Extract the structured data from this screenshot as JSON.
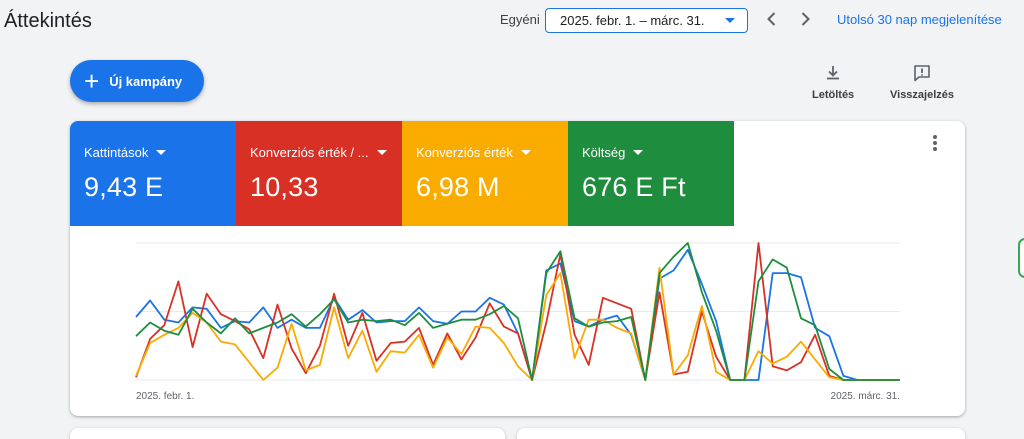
{
  "header": {
    "title": "Áttekintés",
    "date_mode": "Egyéni",
    "date_range": "2025. febr. 1. – márc. 31.",
    "last30_link": "Utolsó 30 nap megjelenítése"
  },
  "toolbar": {
    "new_campaign": "Új kampány",
    "download": "Letöltés",
    "feedback": "Visszajelzés"
  },
  "metrics": [
    {
      "label": "Kattintások",
      "value": "9,43 E",
      "color": "#1a73e8"
    },
    {
      "label": "Konverziós érték / ...",
      "value": "10,33",
      "color": "#d93025"
    },
    {
      "label": "Konverziós érték",
      "value": "6,98 M",
      "color": "#f9ab00"
    },
    {
      "label": "Költség",
      "value": "676 E Ft",
      "color": "#1e8e3e"
    }
  ],
  "chart_data": {
    "type": "line",
    "x_start": "2025. febr. 1.",
    "x_end": "2025. márc. 31.",
    "x_tick_labels": [
      "2025. febr. 1.",
      "2025. márc. 31."
    ],
    "grid": true,
    "note_units": "relative values (no y-axis labels shown)",
    "ylim": [
      0,
      1
    ],
    "series": [
      {
        "color": "#1a73e8",
        "values": [
          0.46,
          0.58,
          0.44,
          0.42,
          0.53,
          0.52,
          0.38,
          0.43,
          0.42,
          0.53,
          0.38,
          0.44,
          0.38,
          0.38,
          0.6,
          0.44,
          0.51,
          0.42,
          0.43,
          0.43,
          0.53,
          0.43,
          0.41,
          0.5,
          0.5,
          0.6,
          0.55,
          0.34,
          0.0,
          0.8,
          0.85,
          0.43,
          0.39,
          0.44,
          0.47,
          0.33,
          0.0,
          0.74,
          0.8,
          0.95,
          0.7,
          0.43,
          0.0,
          0.0,
          0.0,
          0.78,
          0.78,
          0.75,
          0.38,
          0.32,
          0.03,
          0.0,
          0.0,
          0.0,
          0.0
        ]
      },
      {
        "color": "#d93025",
        "values": [
          0.02,
          0.3,
          0.4,
          0.72,
          0.24,
          0.63,
          0.48,
          0.43,
          0.37,
          0.16,
          0.55,
          0.23,
          0.05,
          0.25,
          0.63,
          0.25,
          0.49,
          0.14,
          0.27,
          0.28,
          0.38,
          0.11,
          0.34,
          0.15,
          0.31,
          0.56,
          0.39,
          0.34,
          0.0,
          0.42,
          0.92,
          0.33,
          0.11,
          0.6,
          0.56,
          0.52,
          0.0,
          0.64,
          0.04,
          0.06,
          0.5,
          0.17,
          0.0,
          0.0,
          1.0,
          0.1,
          0.07,
          0.13,
          0.33,
          0.03,
          0.0,
          0.0,
          0.0,
          0.0,
          0.0
        ]
      },
      {
        "color": "#f9ab00",
        "values": [
          0.03,
          0.27,
          0.33,
          0.38,
          0.49,
          0.42,
          0.28,
          0.26,
          0.13,
          0.0,
          0.09,
          0.41,
          0.07,
          0.11,
          0.53,
          0.16,
          0.36,
          0.06,
          0.21,
          0.2,
          0.33,
          0.09,
          0.31,
          0.19,
          0.39,
          0.38,
          0.27,
          0.1,
          0.0,
          0.62,
          0.78,
          0.16,
          0.44,
          0.44,
          0.38,
          0.34,
          0.0,
          0.82,
          0.04,
          0.18,
          0.54,
          0.06,
          0.0,
          0.0,
          0.21,
          0.12,
          0.17,
          0.28,
          0.15,
          0.02,
          0.0,
          0.0,
          0.0,
          0.0,
          0.0
        ]
      },
      {
        "color": "#1e8e3e",
        "values": [
          0.32,
          0.42,
          0.36,
          0.33,
          0.52,
          0.42,
          0.34,
          0.45,
          0.34,
          0.38,
          0.42,
          0.48,
          0.39,
          0.48,
          0.59,
          0.42,
          0.44,
          0.43,
          0.44,
          0.4,
          0.49,
          0.38,
          0.41,
          0.44,
          0.44,
          0.48,
          0.54,
          0.45,
          0.0,
          0.78,
          0.94,
          0.45,
          0.39,
          0.42,
          0.43,
          0.46,
          0.0,
          0.78,
          0.9,
          1.0,
          0.64,
          0.36,
          0.0,
          0.0,
          0.72,
          0.88,
          0.82,
          0.45,
          0.4,
          0.08,
          0.0,
          0.0,
          0.0,
          0.0,
          0.0
        ]
      }
    ]
  }
}
